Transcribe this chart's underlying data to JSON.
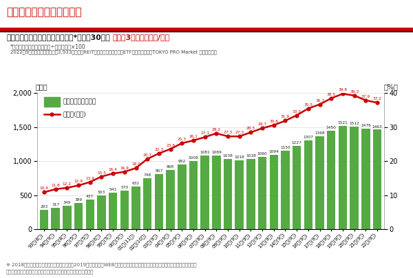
{
  "title_main": "実施企業数と実施率の推移",
  "subtitle_black": "株主優待実施企業数、及び実施率*は過去30年で",
  "subtitle_red": "初めて3年連続で減少/低下",
  "note1": "*実施率＝株主優待実施企業÷全上場企業×100",
  "note2": "2022年9月末の全上場企業数は3,933社［注：REITを含むが、外国株式、ETF、新株予約権、TOKYO PRO Market 等は含まず］",
  "source_line1": "※ 2018年までは株主優待ガイド（冊子版）、2019年以降は同（WEB版）における掲載社数を指す。なお、（　）内は各年の調査月",
  "source_line2": "各社の公式プレスリリース、および企業への直接調査等を元に作成",
  "labels": [
    "93年(8月)",
    "94年(9月)",
    "95年(8月)",
    "96年(5月)",
    "97年(5月)",
    "98年(6月)",
    "99年(5月)",
    "00年(5月)",
    "01年(11月)",
    "02年(10月)",
    "03年(9月)",
    "04年(9月)",
    "05年(9月)",
    "06年(9月)",
    "07年(9月)",
    "08年(9月)",
    "09年(9月)",
    "10年(9月)",
    "11年(9月)",
    "12年(9月)",
    "13年(9月)",
    "14年(9月)",
    "15年(9月)",
    "16年(9月)",
    "17年(9月)",
    "18年(9月)",
    "19年(9月)",
    "20年(9月)",
    "21年(9月)",
    "22年(9月)"
  ],
  "bar_values": [
    283,
    317,
    349,
    389,
    437,
    503,
    541,
    570,
    632,
    748,
    807,
    868,
    952,
    1008,
    1081,
    1089,
    1038,
    1018,
    1038,
    1060,
    1094,
    1150,
    1227,
    1307,
    1368,
    1450,
    1521,
    1512,
    1476,
    1463
  ],
  "line_values": [
    10.9,
    11.8,
    12.2,
    12.9,
    13.9,
    15.5,
    16.4,
    16.9,
    18.0,
    20.7,
    22.3,
    23.6,
    25.3,
    26.1,
    27.1,
    28.2,
    27.3,
    27.3,
    28.5,
    29.7,
    30.6,
    31.9,
    33.5,
    35.5,
    36.7,
    38.5,
    39.8,
    39.3,
    37.9,
    37.2
  ],
  "bar_color": "#55aa44",
  "line_color": "#cc0000",
  "title_color": "#cc0000",
  "red_bar_color": "#cc2200",
  "dark_bar_color": "#222222",
  "background_color": "#ffffff",
  "yleft_max": 2000,
  "yleft_min": 0,
  "yright_max": 40,
  "yright_min": 0,
  "yleft_ticks": [
    0,
    500,
    1000,
    1500,
    2000
  ],
  "yright_ticks": [
    0,
    10,
    20,
    30,
    40
  ],
  "legend_bar": "実施企業数（左軸）",
  "legend_line": "実施率(右軸)",
  "ylabel_left": "（社）",
  "ylabel_right": "（%）"
}
